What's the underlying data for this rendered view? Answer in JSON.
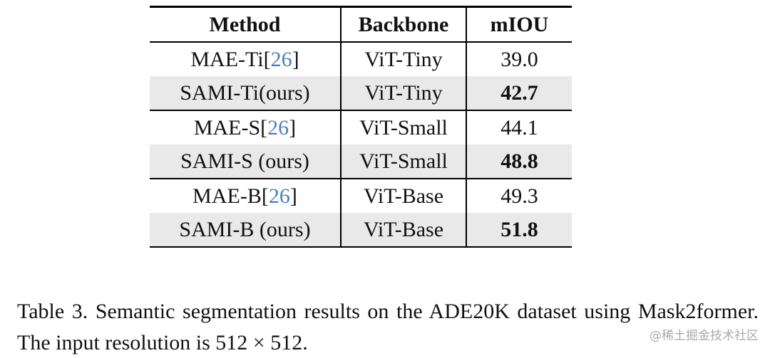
{
  "colors": {
    "citation_blue": "#4a7ebb",
    "shaded_row": "#e9e9e9",
    "rule_black": "#000000",
    "watermark_gray": "#a9a9a9"
  },
  "table": {
    "headers": [
      "Method",
      "Backbone",
      "mIOU"
    ],
    "rows": [
      {
        "method": "MAE-Ti[",
        "cite": "26",
        "close": "]",
        "backbone": "ViT-Tiny",
        "miou": "39.0"
      },
      {
        "method": "SAMI-Ti(ours)",
        "backbone": "ViT-Tiny",
        "miou": "42.7"
      },
      {
        "method": "MAE-S[",
        "cite": "26",
        "close": "]",
        "backbone": "ViT-Small",
        "miou": "44.1"
      },
      {
        "method": "SAMI-S (ours)",
        "backbone": "ViT-Small",
        "miou": "48.8"
      },
      {
        "method": "MAE-B[",
        "cite": "26",
        "close": "]",
        "backbone": "ViT-Base",
        "miou": "49.3"
      },
      {
        "method": "SAMI-B (ours)",
        "backbone": "ViT-Base",
        "miou": "51.8"
      }
    ]
  },
  "caption": {
    "text": "Table 3.  Semantic segmentation results on the ADE20K dataset using Mask2former. The input resolution is 512 × 512."
  },
  "watermark": "@稀土掘金技术社区"
}
